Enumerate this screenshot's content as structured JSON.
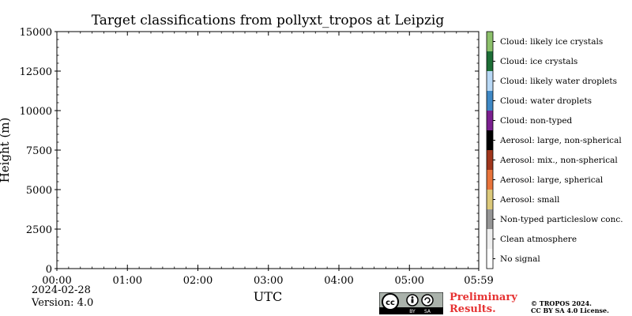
{
  "chart_data": {
    "type": "heatmap",
    "title": "Target classifications from pollyxt_tropos at Leipzig",
    "xlabel": "UTC",
    "ylabel": "Height (m)",
    "x_tick_labels": [
      "00:00",
      "01:00",
      "02:00",
      "03:00",
      "04:00",
      "05:00",
      "05:59"
    ],
    "x_tick_hours": [
      0,
      1,
      2,
      3,
      4,
      5,
      5.983
    ],
    "x_range_hours": [
      0,
      5.983
    ],
    "y_ticks": [
      0,
      2500,
      5000,
      7500,
      10000,
      12500,
      15000
    ],
    "y_tick_labels": [
      "0",
      "2500",
      "5000",
      "7500",
      "10000",
      "12500",
      "15000"
    ],
    "ylim": [
      0,
      15000
    ],
    "grid": false,
    "values": [],
    "legend_position": "right colorbar",
    "classes": [
      {
        "label": "No signal",
        "color": "#ffffff"
      },
      {
        "label": "Clean atmosphere",
        "color": "#f0f0f0"
      },
      {
        "label": "Non-typed particleslow conc.",
        "color": "#969696"
      },
      {
        "label": "Aerosol: small",
        "color": "#dcc97a"
      },
      {
        "label": "Aerosol: large, spherical",
        "color": "#e8743b"
      },
      {
        "label": "Aerosol: mix., non-spherical",
        "color": "#a0361c"
      },
      {
        "label": "Aerosol: large, non-spherical",
        "color": "#000000"
      },
      {
        "label": "Cloud: non-typed",
        "color": "#7a1f8f"
      },
      {
        "label": "Cloud: water droplets",
        "color": "#3f88c5"
      },
      {
        "label": "Cloud: likely water droplets",
        "color": "#b8d8f5"
      },
      {
        "label": "Cloud: ice crystals",
        "color": "#1d6e36"
      },
      {
        "label": "Cloud: likely ice crystals",
        "color": "#8cc06b"
      }
    ]
  },
  "footer": {
    "date": "2024-02-28",
    "version": "Version: 4.0",
    "preliminary_line1": "Preliminary",
    "preliminary_line2": "Results.",
    "copyright_line1": "© TROPOS 2024.",
    "copyright_line2": "CC BY SA 4.0 License.",
    "license_badge_by": "BY",
    "license_badge_sa": "SA"
  }
}
